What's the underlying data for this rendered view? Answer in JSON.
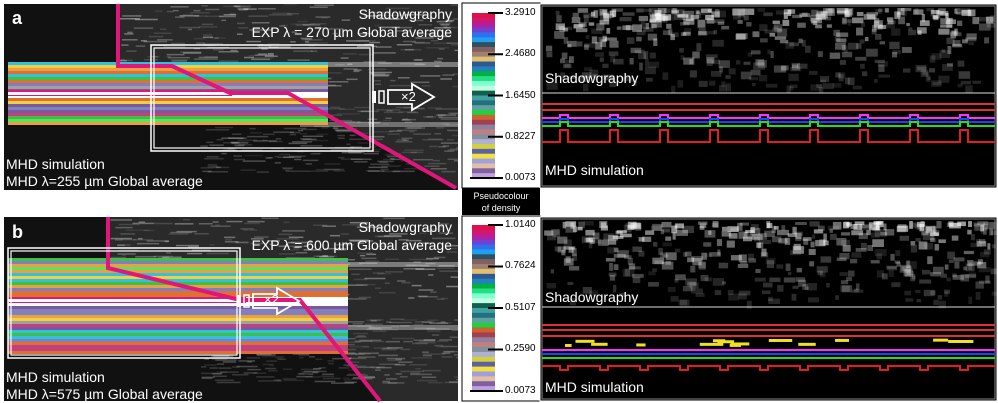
{
  "panels": [
    {
      "letter": "a",
      "exp_title": "Shadowgraphy",
      "exp_caption": "EXP λ = 270 µm Global average",
      "sim_title": "MHD simulation",
      "sim_caption": "MHD λ=255 µm Global average",
      "zoom_label": "×2",
      "colorbar_ticks": [
        "3.2910",
        "2.4680",
        "1.6450",
        "0.8227",
        "0.0073"
      ],
      "zoom_exp_label": "Shadowgraphy",
      "zoom_sim_label": "MHD simulation"
    },
    {
      "letter": "b",
      "exp_title": "Shadowgraphy",
      "exp_caption": "EXP λ = 600 µm Global average",
      "sim_title": "MHD simulation",
      "sim_caption": "MHD λ=575 µm Global average",
      "zoom_label": "×2",
      "colorbar_ticks": [
        "1.0140",
        "0.7624",
        "0.5107",
        "0.2590",
        "0.0073"
      ],
      "zoom_exp_label": "Shadowgraphy",
      "zoom_sim_label": "MHD simulation"
    }
  ],
  "colorbar_caption_line1": "Pseudocolour",
  "colorbar_caption_line2": "of density",
  "colors": {
    "boundary": "#e0167a",
    "background": "#111111"
  }
}
